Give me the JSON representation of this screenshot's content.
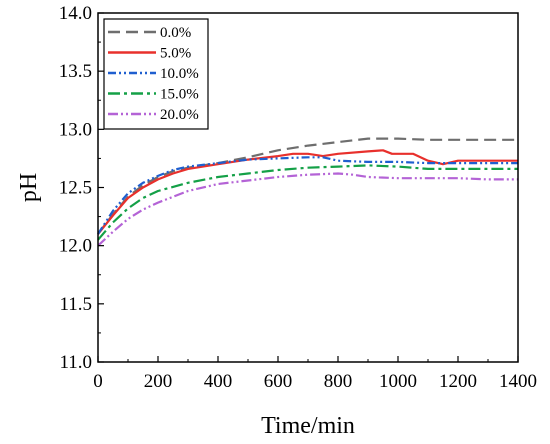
{
  "chart_data": {
    "type": "line",
    "xlabel": "Time/min",
    "ylabel": "pH",
    "xlim": [
      0,
      1400
    ],
    "ylim": [
      11.0,
      14.0
    ],
    "x_ticks": [
      0,
      200,
      400,
      600,
      800,
      1000,
      1200,
      1400
    ],
    "y_ticks": [
      11.0,
      11.5,
      12.0,
      12.5,
      13.0,
      13.5,
      14.0
    ],
    "grid": false,
    "legend_position": "top-left",
    "series": [
      {
        "name": "0.0%",
        "color": "#6e6e6e",
        "dash": "12,6",
        "points": [
          [
            0,
            12.1
          ],
          [
            50,
            12.27
          ],
          [
            100,
            12.42
          ],
          [
            150,
            12.52
          ],
          [
            200,
            12.59
          ],
          [
            250,
            12.64
          ],
          [
            300,
            12.67
          ],
          [
            400,
            12.71
          ],
          [
            500,
            12.76
          ],
          [
            600,
            12.82
          ],
          [
            700,
            12.86
          ],
          [
            800,
            12.89
          ],
          [
            900,
            12.92
          ],
          [
            1000,
            12.92
          ],
          [
            1100,
            12.91
          ],
          [
            1200,
            12.91
          ],
          [
            1300,
            12.91
          ],
          [
            1400,
            12.91
          ]
        ]
      },
      {
        "name": "5.0%",
        "color": "#e8302c",
        "dash": "",
        "points": [
          [
            0,
            12.1
          ],
          [
            50,
            12.26
          ],
          [
            100,
            12.41
          ],
          [
            150,
            12.5
          ],
          [
            200,
            12.57
          ],
          [
            250,
            12.62
          ],
          [
            300,
            12.66
          ],
          [
            400,
            12.7
          ],
          [
            500,
            12.74
          ],
          [
            600,
            12.77
          ],
          [
            650,
            12.79
          ],
          [
            700,
            12.79
          ],
          [
            750,
            12.77
          ],
          [
            800,
            12.79
          ],
          [
            900,
            12.81
          ],
          [
            950,
            12.82
          ],
          [
            980,
            12.79
          ],
          [
            1050,
            12.79
          ],
          [
            1100,
            12.73
          ],
          [
            1150,
            12.7
          ],
          [
            1200,
            12.73
          ],
          [
            1300,
            12.73
          ],
          [
            1400,
            12.73
          ]
        ]
      },
      {
        "name": "10.0%",
        "color": "#1f5fcf",
        "dash": "8,3,2,3,2,3",
        "points": [
          [
            0,
            12.1
          ],
          [
            50,
            12.3
          ],
          [
            100,
            12.45
          ],
          [
            150,
            12.54
          ],
          [
            200,
            12.6
          ],
          [
            250,
            12.65
          ],
          [
            300,
            12.68
          ],
          [
            400,
            12.71
          ],
          [
            500,
            12.74
          ],
          [
            600,
            12.75
          ],
          [
            700,
            12.76
          ],
          [
            750,
            12.76
          ],
          [
            800,
            12.73
          ],
          [
            900,
            12.72
          ],
          [
            1000,
            12.72
          ],
          [
            1100,
            12.71
          ],
          [
            1200,
            12.71
          ],
          [
            1300,
            12.71
          ],
          [
            1400,
            12.71
          ]
        ]
      },
      {
        "name": "15.0%",
        "color": "#14a047",
        "dash": "12,4,3,4",
        "points": [
          [
            0,
            12.05
          ],
          [
            50,
            12.2
          ],
          [
            100,
            12.32
          ],
          [
            150,
            12.41
          ],
          [
            200,
            12.47
          ],
          [
            300,
            12.54
          ],
          [
            400,
            12.59
          ],
          [
            500,
            12.62
          ],
          [
            600,
            12.65
          ],
          [
            700,
            12.67
          ],
          [
            800,
            12.68
          ],
          [
            900,
            12.69
          ],
          [
            1000,
            12.68
          ],
          [
            1100,
            12.66
          ],
          [
            1200,
            12.66
          ],
          [
            1300,
            12.66
          ],
          [
            1400,
            12.66
          ]
        ]
      },
      {
        "name": "20.0%",
        "color": "#b463d6",
        "dash": "10,3,2,3,2,3",
        "points": [
          [
            0,
            12.0
          ],
          [
            50,
            12.12
          ],
          [
            100,
            12.23
          ],
          [
            150,
            12.31
          ],
          [
            200,
            12.37
          ],
          [
            300,
            12.47
          ],
          [
            400,
            12.53
          ],
          [
            500,
            12.56
          ],
          [
            600,
            12.59
          ],
          [
            700,
            12.61
          ],
          [
            800,
            12.62
          ],
          [
            850,
            12.61
          ],
          [
            900,
            12.59
          ],
          [
            1000,
            12.58
          ],
          [
            1100,
            12.58
          ],
          [
            1200,
            12.58
          ],
          [
            1300,
            12.57
          ],
          [
            1400,
            12.57
          ]
        ]
      }
    ]
  }
}
